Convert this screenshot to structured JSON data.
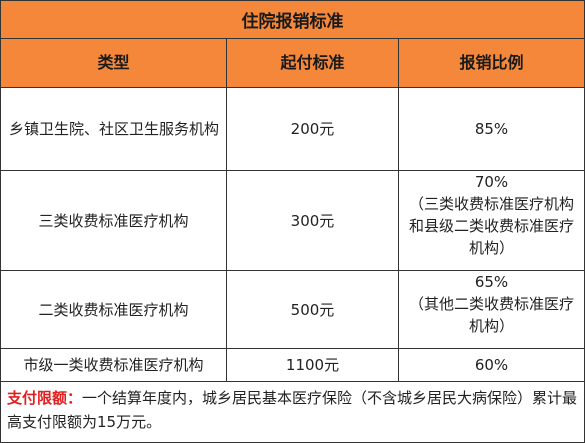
{
  "table": {
    "title": "住院报销标准",
    "headers": [
      "类型",
      "起付标准",
      "报销比例"
    ],
    "rows": [
      {
        "type": "乡镇卫生院、社区卫生服务机构",
        "deductible": "200元",
        "ratio_main": "85%",
        "ratio_note": ""
      },
      {
        "type": "三类收费标准医疗机构",
        "deductible": "300元",
        "ratio_main": "70%",
        "ratio_note": "（三类收费标准医疗机构和县级二类收费标准医疗机构）"
      },
      {
        "type": "二类收费标准医疗机构",
        "deductible": "500元",
        "ratio_main": "65%",
        "ratio_note": "（其他二类收费标准医疗机构）"
      },
      {
        "type": "市级一类收费标准医疗机构",
        "deductible": "1100元",
        "ratio_main": "60%",
        "ratio_note": ""
      }
    ]
  },
  "note": {
    "label": "支付限额：",
    "text": "一个结算年度内，城乡居民基本医疗保险（不含城乡居民大病保险）累计最高支付限额为15万元。"
  },
  "colors": {
    "header_bg": "#f4873a",
    "label_red": "#e02020"
  }
}
